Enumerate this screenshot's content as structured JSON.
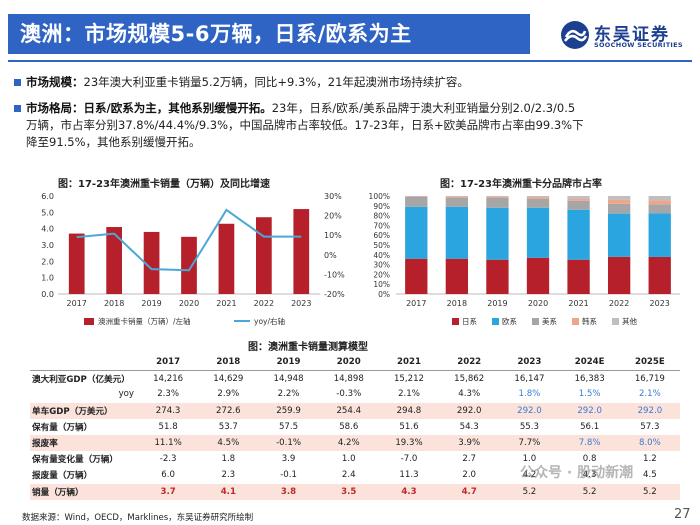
{
  "header": {
    "title": "澳洲：市场规模5-6万辆，日系/欧系为主",
    "logo_cn": "东吴证券",
    "logo_en": "SOOCHOW SECURITIES"
  },
  "bullets": [
    {
      "bold": "市场规模：",
      "text": "23年澳大利亚重卡销量5.2万辆，同比+9.3%，21年起澳洲市场持续扩容。"
    },
    {
      "bold": "市场格局：日系/欧系为主，其他系别缓慢开拓。",
      "text_l1": "23年，日系/欧系/美系品牌于澳大利亚销量分别2.0/2.3/0.5",
      "text_l2": "万辆，市占率分别37.8%/44.4%/9.3%，中国品牌市占率较低。17-23年，日系+欧美品牌市占率由99.3%下",
      "text_l3": "降至91.5%，其他系别缓慢开拓。"
    }
  ],
  "chart_data": [
    {
      "type": "bar",
      "title": "图：17-23年澳洲重卡销量（万辆）及同比增速",
      "categories": [
        "2017",
        "2018",
        "2019",
        "2020",
        "2021",
        "2022",
        "2023"
      ],
      "series": [
        {
          "name": "澳洲重卡销量（万辆）/左轴",
          "values": [
            3.7,
            4.1,
            3.8,
            3.5,
            4.3,
            4.7,
            5.2
          ],
          "color": "#b5202a"
        },
        {
          "name": "yoy/右轴",
          "values": [
            9.0,
            10.8,
            -7.3,
            -7.9,
            22.9,
            9.3,
            9.3
          ],
          "color": "#4aa8d8",
          "type": "line"
        }
      ],
      "ylim": [
        0,
        6
      ],
      "yticks": [
        "0.0",
        "1.0",
        "2.0",
        "3.0",
        "4.0",
        "5.0",
        "6.0"
      ],
      "y2lim": [
        -20,
        30
      ],
      "y2ticks": [
        "-20%",
        "-10%",
        "0%",
        "10%",
        "20%",
        "30%"
      ]
    },
    {
      "type": "bar",
      "title": "图：17-23年澳洲重卡分品牌市占率",
      "categories": [
        "2017",
        "2018",
        "2019",
        "2020",
        "2021",
        "2022",
        "2023"
      ],
      "stacked": true,
      "series": [
        {
          "name": "日系",
          "values": [
            36,
            36,
            35,
            37,
            35,
            38,
            37.8
          ],
          "color": "#b5202a"
        },
        {
          "name": "欧系",
          "values": [
            53,
            53,
            53,
            51,
            51,
            44,
            44.4
          ],
          "color": "#2aa5df"
        },
        {
          "name": "美系",
          "values": [
            10,
            9,
            10,
            9,
            9,
            10,
            9.3
          ],
          "color": "#a6a6a6"
        },
        {
          "name": "韩系",
          "values": [
            0.5,
            1,
            1,
            1.5,
            2,
            4,
            4
          ],
          "color": "#f0a58a"
        },
        {
          "name": "其他",
          "values": [
            0.5,
            1,
            1,
            1.5,
            3,
            4,
            4.5
          ],
          "color": "#bfbfbf"
        }
      ],
      "ylim": [
        0,
        100
      ],
      "yticks": [
        "0%",
        "10%",
        "20%",
        "30%",
        "40%",
        "50%",
        "60%",
        "70%",
        "80%",
        "90%",
        "100%"
      ]
    }
  ],
  "table": {
    "title": "图：澳洲重卡销量测算模型",
    "columns": [
      "",
      "2017",
      "2018",
      "2019",
      "2020",
      "2021",
      "2022",
      "2023",
      "2024E",
      "2025E"
    ],
    "rows": [
      {
        "label": "澳大利亚GDP（亿美元）",
        "cells": [
          "14,216",
          "14,629",
          "14,948",
          "14,898",
          "15,212",
          "15,862",
          "16,147",
          "16,383",
          "16,719"
        ],
        "shade": false,
        "blue_from": 99
      },
      {
        "label": "yoy",
        "right": true,
        "cells": [
          "2.3%",
          "2.9%",
          "2.2%",
          "-0.3%",
          "2.1%",
          "4.3%",
          "1.8%",
          "1.5%",
          "2.1%"
        ],
        "shade": false,
        "blue_from": 6
      },
      {
        "label": "单车GDP（万美元）",
        "cells": [
          "274.3",
          "272.6",
          "259.9",
          "254.4",
          "294.8",
          "292.0",
          "292.0",
          "292.0",
          "292.0"
        ],
        "shade": true,
        "blue_from": 6
      },
      {
        "label": "保有量（万辆）",
        "cells": [
          "51.8",
          "53.7",
          "57.5",
          "58.6",
          "51.6",
          "54.3",
          "55.3",
          "56.1",
          "57.3"
        ],
        "shade": false,
        "blue_from": 99
      },
      {
        "label": "报废率",
        "cells": [
          "11.1%",
          "4.5%",
          "-0.1%",
          "4.2%",
          "19.3%",
          "3.9%",
          "7.7%",
          "7.8%",
          "8.0%"
        ],
        "shade": true,
        "blue_from": 7
      },
      {
        "label": "保有量变化量（万辆）",
        "cells": [
          "-2.3",
          "1.8",
          "3.9",
          "1.0",
          "-7.0",
          "2.7",
          "1.0",
          "0.8",
          "1.2"
        ],
        "shade": false,
        "blue_from": 99
      },
      {
        "label": "报废量（万辆）",
        "cells": [
          "6.0",
          "2.3",
          "-0.1",
          "2.4",
          "11.3",
          "2.0",
          "4.2",
          "4.3",
          "4.5"
        ],
        "shade": false,
        "blue_from": 99
      },
      {
        "label": "销量（万辆）",
        "cells": [
          "3.7",
          "4.1",
          "3.8",
          "3.5",
          "4.3",
          "4.7",
          "5.2",
          "5.2",
          "5.2"
        ],
        "shade": true,
        "red": true,
        "blue_from": 99
      }
    ]
  },
  "footer": {
    "source": "数据来源：Wind，OECD，Marklines，东吴证券研究所绘制",
    "page": "27",
    "watermark": "公众号 · 股动新潮"
  }
}
